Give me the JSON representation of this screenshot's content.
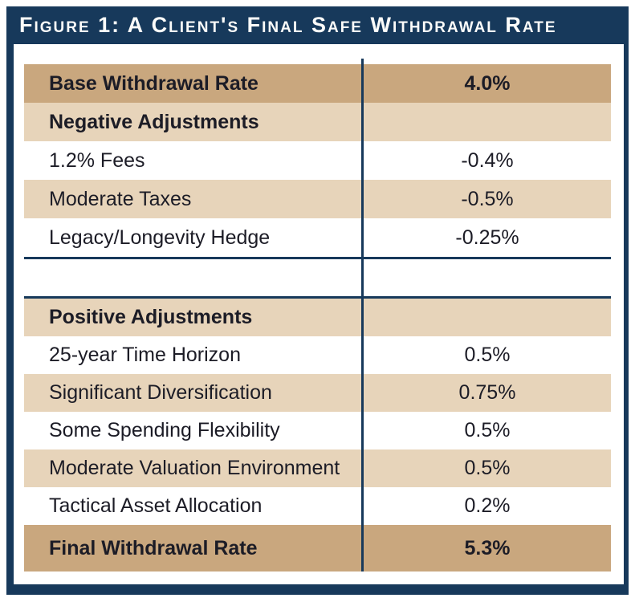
{
  "title": "Figure 1: A Client's Final Safe Withdrawal Rate",
  "colors": {
    "navy": "#17395B",
    "tan_dark": "#C9A77E",
    "tan_light": "#E7D4BA",
    "text": "#1C1C26",
    "title_text": "#FCFCFA"
  },
  "table": {
    "top_rows": [
      {
        "label": "Base Withdrawal Rate",
        "value": "4.0%",
        "variant": "total"
      },
      {
        "label": "Negative Adjustments",
        "value": "",
        "variant": "section"
      },
      {
        "label": "1.2% Fees",
        "value": "-0.4%",
        "variant": "light"
      },
      {
        "label": "Moderate Taxes",
        "value": "-0.5%",
        "variant": "shaded"
      },
      {
        "label": "Legacy/Longevity Hedge",
        "value": "-0.25%",
        "variant": "light"
      }
    ],
    "bottom_rows": [
      {
        "label": "Positive Adjustments",
        "value": "",
        "variant": "section"
      },
      {
        "label": "25-year Time Horizon",
        "value": "0.5%",
        "variant": "light"
      },
      {
        "label": "Significant Diversification",
        "value": "0.75%",
        "variant": "shaded"
      },
      {
        "label": "Some Spending Flexibility",
        "value": "0.5%",
        "variant": "light"
      },
      {
        "label": "Moderate Valuation Environment",
        "value": "0.5%",
        "variant": "shaded"
      },
      {
        "label": "Tactical Asset Allocation",
        "value": "0.2%",
        "variant": "light"
      },
      {
        "label": "Final Withdrawal Rate",
        "value": "5.3%",
        "variant": "total"
      }
    ]
  }
}
